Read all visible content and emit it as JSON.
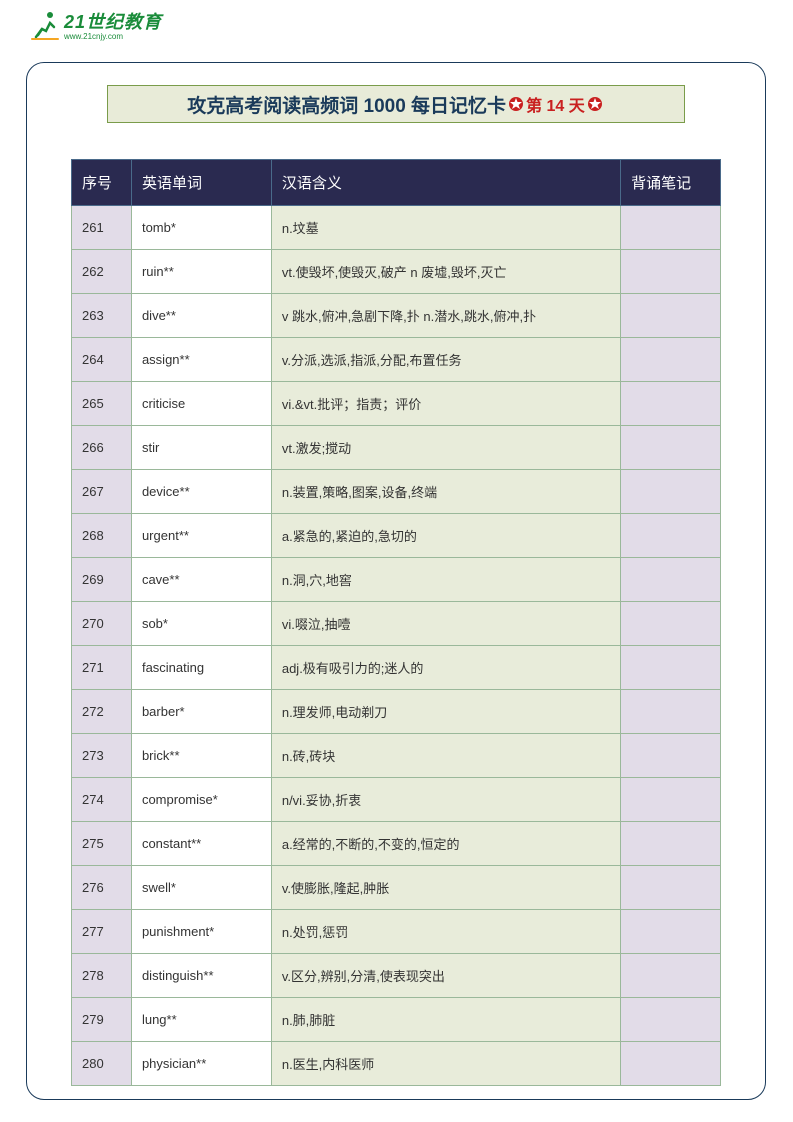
{
  "logo": {
    "main": "21世纪教育",
    "sub": "www.21cnjy.com"
  },
  "title": {
    "prefix": "攻克高考阅读高频词 1000  每日记忆卡 ",
    "day_label": "第 14 天"
  },
  "table": {
    "headers": {
      "num": "序号",
      "word": "英语单词",
      "meaning": "汉语含义",
      "note": "背诵笔记"
    },
    "rows": [
      {
        "num": "261",
        "word": "tomb*",
        "meaning": "n.坟墓"
      },
      {
        "num": "262",
        "word": "ruin**",
        "meaning": "vt.使毁坏,使毁灭,破产  n  废墟,毁坏,灭亡"
      },
      {
        "num": "263",
        "word": "dive**",
        "meaning": "v 跳水,俯冲,急剧下降,扑  n.潜水,跳水,俯冲,扑"
      },
      {
        "num": "264",
        "word": "assign**",
        "meaning": "v.分派,选派,指派,分配,布置任务"
      },
      {
        "num": "265",
        "word": "criticise",
        "meaning": "vi.&vt.批评；指责；评价"
      },
      {
        "num": "266",
        "word": "stir",
        "meaning": "vt.激发;搅动"
      },
      {
        "num": "267",
        "word": "device**",
        "meaning": "n.装置,策略,图案,设备,终端"
      },
      {
        "num": "268",
        "word": "urgent**",
        "meaning": "a.紧急的,紧迫的,急切的"
      },
      {
        "num": "269",
        "word": "cave**",
        "meaning": "n.洞,穴,地窖"
      },
      {
        "num": "270",
        "word": "sob*",
        "meaning": "vi.啜泣,抽噎"
      },
      {
        "num": "271",
        "word": "fascinating",
        "meaning": "adj.极有吸引力的;迷人的"
      },
      {
        "num": "272",
        "word": "barber*",
        "meaning": "n.理发师,电动剃刀"
      },
      {
        "num": "273",
        "word": "brick**",
        "meaning": "n.砖,砖块"
      },
      {
        "num": "274",
        "word": "compromise*",
        "meaning": "n/vi.妥协,折衷"
      },
      {
        "num": "275",
        "word": "constant**",
        "meaning": "a.经常的,不断的,不变的,恒定的"
      },
      {
        "num": "276",
        "word": "swell*",
        "meaning": "v.使膨胀,隆起,肿胀"
      },
      {
        "num": "277",
        "word": "punishment*",
        "meaning": "n.处罚,惩罚"
      },
      {
        "num": "278",
        "word": "distinguish**",
        "meaning": "v.区分,辨别,分清,使表现突出"
      },
      {
        "num": "279",
        "word": "lung**",
        "meaning": "n.肺,肺脏"
      },
      {
        "num": "280",
        "word": "physician**",
        "meaning": "n.医生,内科医师"
      }
    ]
  }
}
